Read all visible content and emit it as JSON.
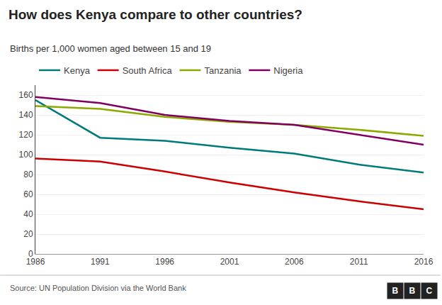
{
  "chart_data": {
    "type": "line",
    "title": "How does Kenya compare to other countries?",
    "subtitle": "Births per 1,000 women aged between 15 and 19",
    "source": "Source: UN Population Division via the World Bank",
    "annotations": [
      "B",
      "B",
      "C"
    ],
    "x": [
      1986,
      1991,
      1996,
      2001,
      2006,
      2011,
      2016
    ],
    "series": [
      {
        "name": "Kenya",
        "color": "#007a7a",
        "values": [
          155,
          117,
          114,
          107,
          101,
          90,
          82
        ]
      },
      {
        "name": "South Africa",
        "color": "#cc0000",
        "values": [
          96,
          93,
          83,
          72,
          62,
          53,
          45
        ]
      },
      {
        "name": "Tanzania",
        "color": "#8aaa00",
        "values": [
          149,
          146,
          138,
          133,
          130,
          125,
          119
        ]
      },
      {
        "name": "Nigeria",
        "color": "#800060",
        "values": [
          158,
          152,
          140,
          134,
          130,
          120,
          110
        ]
      }
    ],
    "xlim": [
      1986,
      2016
    ],
    "xticks": [
      1986,
      1991,
      1996,
      2001,
      2006,
      2011,
      2016
    ],
    "ylim": [
      0,
      170
    ],
    "yticks": [
      0,
      20,
      40,
      60,
      80,
      100,
      120,
      140,
      160
    ],
    "grid": true,
    "legend": "upper left"
  }
}
